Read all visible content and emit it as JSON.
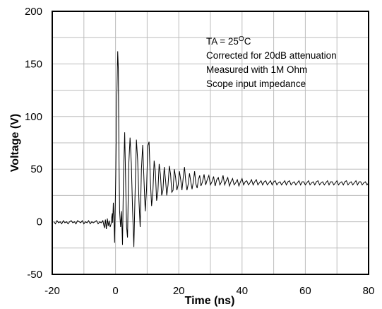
{
  "chart_data": {
    "type": "line",
    "title": "",
    "xlabel": "Time (ns)",
    "ylabel": "Voltage (V)",
    "xlim": [
      -20,
      80
    ],
    "ylim": [
      -50,
      200
    ],
    "xticks": [
      -20,
      0,
      20,
      40,
      60,
      80
    ],
    "yticks": [
      -50,
      0,
      50,
      100,
      150,
      200
    ],
    "x_gridlines": [
      -20,
      -10,
      0,
      10,
      20,
      30,
      40,
      50,
      60,
      70,
      80
    ],
    "y_gridlines": [
      -50,
      -25,
      0,
      25,
      50,
      75,
      100,
      125,
      150,
      175,
      200
    ],
    "grid": true,
    "legend": "none",
    "annotation": {
      "line1_prefix": "TA = 25",
      "line1_sup": "O",
      "line1_suffix": "C",
      "line2": "Corrected for 20dB attenuation",
      "line3": "Measured with 1M Ohm",
      "line4": "Scope input impedance"
    },
    "series": [
      {
        "values": [
          [
            -19.5,
            0
          ],
          [
            -19,
            -2
          ],
          [
            -18.5,
            1
          ],
          [
            -18,
            -1
          ],
          [
            -17.5,
            0
          ],
          [
            -17,
            -2
          ],
          [
            -16.5,
            1
          ],
          [
            -16,
            -1
          ],
          [
            -15.5,
            0
          ],
          [
            -15,
            -2
          ],
          [
            -14.5,
            0
          ],
          [
            -14,
            1
          ],
          [
            -13.5,
            -1
          ],
          [
            -13,
            0
          ],
          [
            -12.5,
            -2
          ],
          [
            -12,
            1
          ],
          [
            -11.5,
            0
          ],
          [
            -11,
            -1
          ],
          [
            -10.5,
            1
          ],
          [
            -10,
            -2
          ],
          [
            -9.5,
            0
          ],
          [
            -9,
            -1
          ],
          [
            -8.5,
            1
          ],
          [
            -8,
            -2
          ],
          [
            -7.5,
            0
          ],
          [
            -7,
            -1
          ],
          [
            -6.5,
            0
          ],
          [
            -6,
            1
          ],
          [
            -5.5,
            -2
          ],
          [
            -5,
            0
          ],
          [
            -4.5,
            -1
          ],
          [
            -4,
            1
          ],
          [
            -3.5,
            -6
          ],
          [
            -3.2,
            2
          ],
          [
            -2.9,
            -7
          ],
          [
            -2.6,
            3
          ],
          [
            -2.3,
            -4
          ],
          [
            -2,
            1
          ],
          [
            -1.7,
            -5
          ],
          [
            -1.4,
            -2
          ],
          [
            -1.2,
            4
          ],
          [
            -1,
            8
          ],
          [
            -0.9,
            -1
          ],
          [
            -0.7,
            18
          ],
          [
            -0.5,
            5
          ],
          [
            -0.3,
            -20
          ],
          [
            -0.1,
            15
          ],
          [
            0.1,
            45
          ],
          [
            0.3,
            100
          ],
          [
            0.5,
            130
          ],
          [
            0.7,
            162
          ],
          [
            0.9,
            145
          ],
          [
            1.1,
            60
          ],
          [
            1.3,
            10
          ],
          [
            1.6,
            -5
          ],
          [
            1.9,
            10
          ],
          [
            2.2,
            -22
          ],
          [
            2.5,
            40
          ],
          [
            2.9,
            85
          ],
          [
            3.2,
            40
          ],
          [
            3.5,
            -5
          ],
          [
            3.8,
            -15
          ],
          [
            4.2,
            55
          ],
          [
            4.6,
            80
          ],
          [
            5,
            55
          ],
          [
            5.4,
            10
          ],
          [
            5.8,
            -24
          ],
          [
            6.2,
            30
          ],
          [
            6.6,
            78
          ],
          [
            7,
            58
          ],
          [
            7.4,
            20
          ],
          [
            7.8,
            -5
          ],
          [
            8.2,
            50
          ],
          [
            8.6,
            73
          ],
          [
            9,
            40
          ],
          [
            9.4,
            10
          ],
          [
            9.8,
            30
          ],
          [
            10.2,
            72
          ],
          [
            10.6,
            76
          ],
          [
            11,
            40
          ],
          [
            11.4,
            15
          ],
          [
            11.8,
            28
          ],
          [
            12.2,
            58
          ],
          [
            12.6,
            48
          ],
          [
            13,
            20
          ],
          [
            13.4,
            28
          ],
          [
            13.8,
            55
          ],
          [
            14.2,
            45
          ],
          [
            14.6,
            25
          ],
          [
            15,
            30
          ],
          [
            15.4,
            52
          ],
          [
            15.8,
            40
          ],
          [
            16.2,
            25
          ],
          [
            16.6,
            35
          ],
          [
            17,
            53
          ],
          [
            17.4,
            45
          ],
          [
            17.8,
            28
          ],
          [
            18.2,
            30
          ],
          [
            18.6,
            50
          ],
          [
            19,
            42
          ],
          [
            19.4,
            30
          ],
          [
            19.8,
            35
          ],
          [
            20.2,
            48
          ],
          [
            20.6,
            40
          ],
          [
            21,
            30
          ],
          [
            21.4,
            42
          ],
          [
            21.8,
            52
          ],
          [
            22.2,
            38
          ],
          [
            22.6,
            30
          ],
          [
            23,
            36
          ],
          [
            23.4,
            46
          ],
          [
            23.8,
            38
          ],
          [
            24.2,
            31
          ],
          [
            24.6,
            38
          ],
          [
            25,
            48
          ],
          [
            25.4,
            36
          ],
          [
            25.8,
            32
          ],
          [
            26.2,
            40
          ],
          [
            26.6,
            44
          ],
          [
            27,
            34
          ],
          [
            27.5,
            38
          ],
          [
            28,
            45
          ],
          [
            28.5,
            35
          ],
          [
            29,
            40
          ],
          [
            29.5,
            44
          ],
          [
            30,
            35
          ],
          [
            30.5,
            38
          ],
          [
            31,
            43
          ],
          [
            31.5,
            34
          ],
          [
            32,
            40
          ],
          [
            32.5,
            42
          ],
          [
            33,
            35
          ],
          [
            33.5,
            38
          ],
          [
            34,
            44
          ],
          [
            34.5,
            35
          ],
          [
            35,
            39
          ],
          [
            35.5,
            42
          ],
          [
            36,
            34
          ],
          [
            36.5,
            38
          ],
          [
            37,
            41
          ],
          [
            37.5,
            35
          ],
          [
            38,
            37
          ],
          [
            38.5,
            40
          ],
          [
            39,
            34
          ],
          [
            39.5,
            38
          ],
          [
            40,
            41
          ],
          [
            40.5,
            35
          ],
          [
            41,
            38
          ],
          [
            41.5,
            39
          ],
          [
            42,
            35
          ],
          [
            42.5,
            37
          ],
          [
            43,
            40
          ],
          [
            43.5,
            35
          ],
          [
            44,
            38
          ],
          [
            44.5,
            40
          ],
          [
            45,
            35
          ],
          [
            45.5,
            37
          ],
          [
            46,
            39
          ],
          [
            46.5,
            35
          ],
          [
            47,
            38
          ],
          [
            47.5,
            39
          ],
          [
            48,
            35
          ],
          [
            48.5,
            37
          ],
          [
            49,
            39
          ],
          [
            49.5,
            35
          ],
          [
            50,
            38
          ],
          [
            50.5,
            39
          ],
          [
            51,
            35
          ],
          [
            51.5,
            37
          ],
          [
            52,
            38
          ],
          [
            52.5,
            35
          ],
          [
            53,
            37
          ],
          [
            53.5,
            39
          ],
          [
            54,
            35
          ],
          [
            54.5,
            38
          ],
          [
            55,
            39
          ],
          [
            55.5,
            35
          ],
          [
            56,
            37
          ],
          [
            56.5,
            38
          ],
          [
            57,
            35
          ],
          [
            57.5,
            37
          ],
          [
            58,
            39
          ],
          [
            58.5,
            35
          ],
          [
            59,
            38
          ],
          [
            59.5,
            38
          ],
          [
            60,
            35
          ],
          [
            60.5,
            37
          ],
          [
            61,
            39
          ],
          [
            61.5,
            35
          ],
          [
            62,
            37
          ],
          [
            62.5,
            38
          ],
          [
            63,
            35
          ],
          [
            63.5,
            38
          ],
          [
            64,
            39
          ],
          [
            64.5,
            35
          ],
          [
            65,
            37
          ],
          [
            65.5,
            38
          ],
          [
            66,
            35
          ],
          [
            66.5,
            37
          ],
          [
            67,
            39
          ],
          [
            67.5,
            35
          ],
          [
            68,
            38
          ],
          [
            68.5,
            38
          ],
          [
            69,
            35
          ],
          [
            69.5,
            37
          ],
          [
            70,
            39
          ],
          [
            70.5,
            35
          ],
          [
            71,
            37
          ],
          [
            71.5,
            38
          ],
          [
            72,
            35
          ],
          [
            72.5,
            38
          ],
          [
            73,
            39
          ],
          [
            73.5,
            35
          ],
          [
            74,
            37
          ],
          [
            74.5,
            38
          ],
          [
            75,
            35
          ],
          [
            75.5,
            37
          ],
          [
            76,
            39
          ],
          [
            76.5,
            35
          ],
          [
            77,
            38
          ],
          [
            77.5,
            38
          ],
          [
            78,
            35
          ],
          [
            78.5,
            37
          ],
          [
            79,
            38
          ],
          [
            79.5,
            35
          ],
          [
            80,
            37
          ]
        ]
      }
    ]
  }
}
